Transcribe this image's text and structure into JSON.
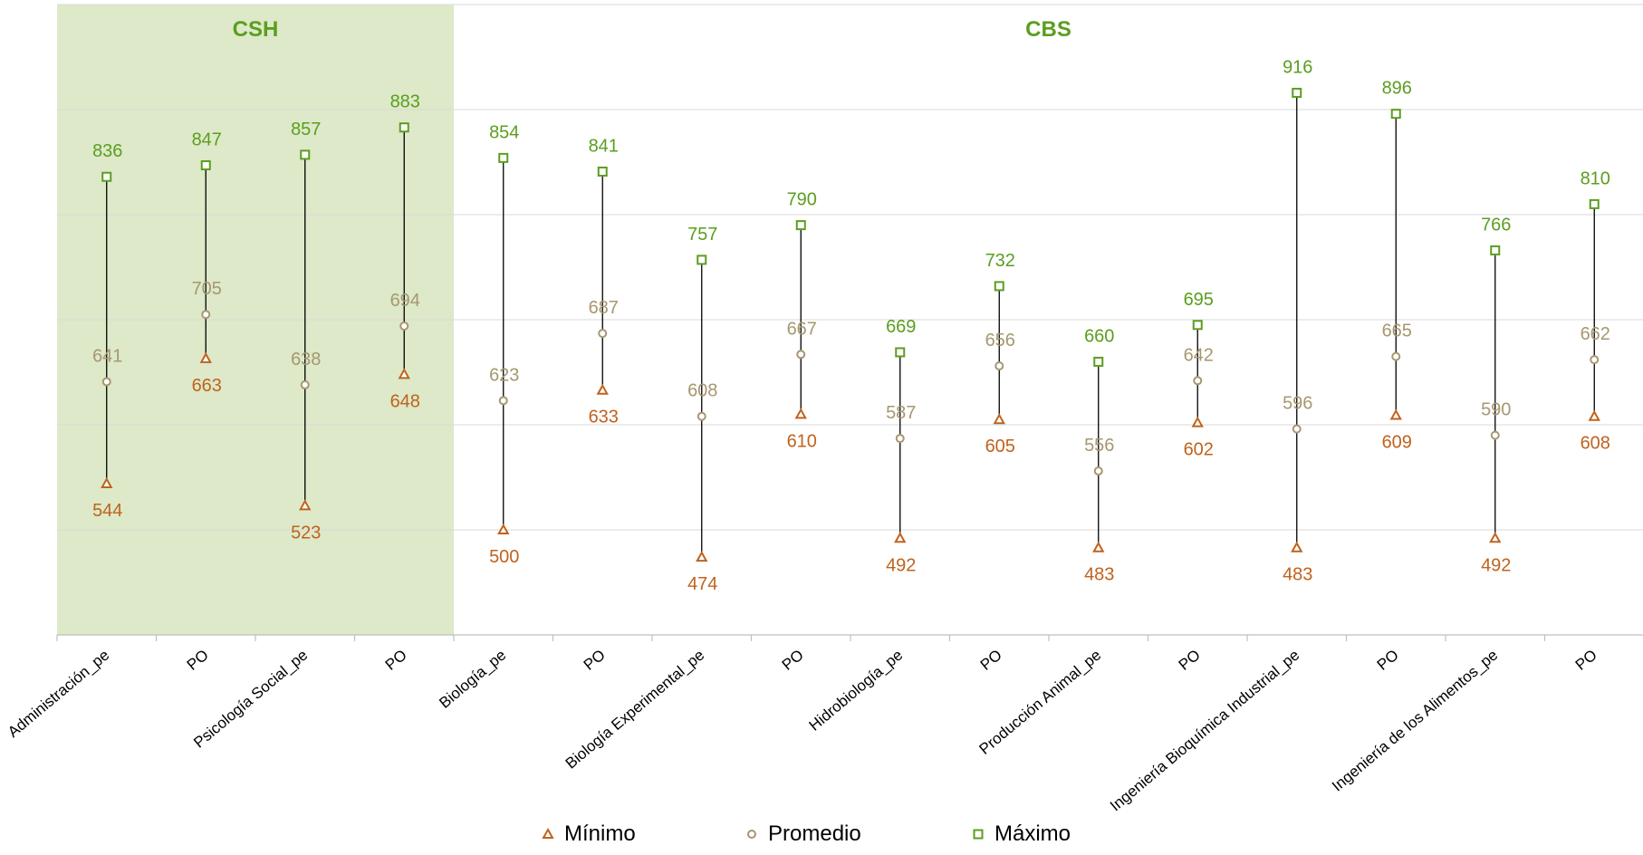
{
  "chart_data": {
    "type": "hi-lo-scatter",
    "groups": [
      {
        "label": "CSH",
        "span": [
          0,
          3
        ],
        "fill": "#dde9c8",
        "label_color": "#5b9e1f"
      },
      {
        "label": "CBS",
        "span": [
          4,
          15
        ],
        "fill": "#ffffff",
        "label_color": "#5b9e1f"
      }
    ],
    "categories": [
      "Administración_pe",
      "PO",
      "Psicología Social_pe",
      "PO",
      "Biología_pe",
      "PO",
      "Biología Experimental_pe",
      "PO",
      "Hidrobiología_pe",
      "PO",
      "Producción Animal_pe",
      "PO",
      "Ingeniería Bioquímica Industrial_pe",
      "PO",
      "Ingeniería de los Alimentos_pe",
      "PO"
    ],
    "series": [
      {
        "name": "Mínimo",
        "marker": "triangle",
        "color": "#c0621d",
        "values": [
          544,
          663,
          523,
          648,
          500,
          633,
          474,
          610,
          492,
          605,
          483,
          602,
          483,
          609,
          492,
          608
        ]
      },
      {
        "name": "Promedio",
        "marker": "circle",
        "color": "#a69770",
        "values": [
          641,
          705,
          638,
          694,
          623,
          687,
          608,
          667,
          587,
          656,
          556,
          642,
          596,
          665,
          590,
          662
        ]
      },
      {
        "name": "Máximo",
        "marker": "square",
        "color": "#5b9e1f",
        "values": [
          836,
          847,
          857,
          883,
          854,
          841,
          757,
          790,
          669,
          732,
          660,
          695,
          916,
          896,
          766,
          810
        ]
      }
    ],
    "ylim": [
      400,
      1000
    ],
    "ygrid_step": 100,
    "grid": true,
    "legend_position": "bottom"
  }
}
